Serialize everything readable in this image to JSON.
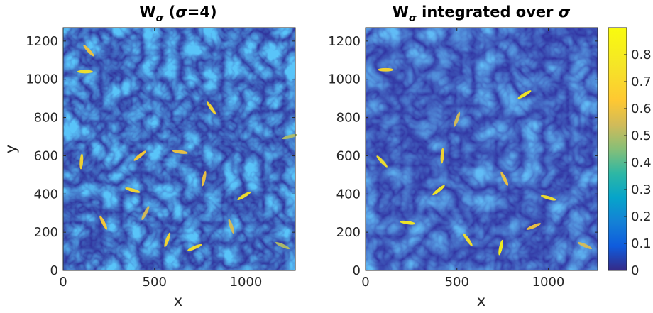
{
  "chart_data": [
    {
      "type": "heatmap",
      "title_main": "W",
      "title_sub": "σ",
      "title_rest_open": " (",
      "title_sigma": "σ",
      "title_rest_close": "=4)",
      "xlabel": "x",
      "ylabel": "y",
      "xlim": [
        0,
        1270
      ],
      "ylim": [
        0,
        1270
      ],
      "xticks": [
        0,
        500,
        1000
      ],
      "yticks": [
        0,
        200,
        400,
        600,
        800,
        1000,
        1200
      ],
      "colormap": "parula",
      "bright_streaks": [
        {
          "x": 120,
          "y": 1040,
          "v": 0.75
        },
        {
          "x": 140,
          "y": 1150,
          "v": 0.6
        },
        {
          "x": 100,
          "y": 570,
          "v": 0.7
        },
        {
          "x": 420,
          "y": 600,
          "v": 0.65
        },
        {
          "x": 640,
          "y": 620,
          "v": 0.6
        },
        {
          "x": 810,
          "y": 850,
          "v": 0.7
        },
        {
          "x": 770,
          "y": 480,
          "v": 0.6
        },
        {
          "x": 990,
          "y": 390,
          "v": 0.75
        },
        {
          "x": 380,
          "y": 420,
          "v": 0.7
        },
        {
          "x": 220,
          "y": 250,
          "v": 0.65
        },
        {
          "x": 570,
          "y": 160,
          "v": 0.7
        },
        {
          "x": 720,
          "y": 120,
          "v": 0.75
        },
        {
          "x": 1200,
          "y": 130,
          "v": 0.5
        },
        {
          "x": 920,
          "y": 230,
          "v": 0.55
        },
        {
          "x": 450,
          "y": 300,
          "v": 0.55
        },
        {
          "x": 1240,
          "y": 700,
          "v": 0.5
        }
      ]
    },
    {
      "type": "heatmap",
      "title_main": "W",
      "title_sub": "σ",
      "title_rest": " integrated over ",
      "title_sigma": "σ",
      "xlabel": "x",
      "ylabel": "",
      "xlim": [
        0,
        1270
      ],
      "ylim": [
        0,
        1270
      ],
      "xticks": [
        0,
        500,
        1000
      ],
      "yticks": [
        0,
        200,
        400,
        600,
        800,
        1000,
        1200
      ],
      "colormap": "parula",
      "colorbar": {
        "range": [
          0,
          0.9
        ],
        "ticks": [
          0,
          0.1,
          0.2,
          0.3,
          0.4,
          0.5,
          0.6,
          0.7,
          0.8
        ],
        "tick_labels": [
          "0",
          "0.1",
          "0.2",
          "0.3",
          "0.4",
          "0.5",
          "0.6",
          "0.7",
          "0.8"
        ]
      },
      "bright_streaks": [
        {
          "x": 110,
          "y": 1050,
          "v": 0.7
        },
        {
          "x": 90,
          "y": 570,
          "v": 0.75
        },
        {
          "x": 420,
          "y": 600,
          "v": 0.7
        },
        {
          "x": 400,
          "y": 420,
          "v": 0.8
        },
        {
          "x": 230,
          "y": 250,
          "v": 0.8
        },
        {
          "x": 560,
          "y": 160,
          "v": 0.75
        },
        {
          "x": 740,
          "y": 120,
          "v": 0.85
        },
        {
          "x": 870,
          "y": 920,
          "v": 0.8
        },
        {
          "x": 1000,
          "y": 380,
          "v": 0.75
        },
        {
          "x": 760,
          "y": 480,
          "v": 0.6
        },
        {
          "x": 500,
          "y": 790,
          "v": 0.55
        },
        {
          "x": 920,
          "y": 230,
          "v": 0.6
        },
        {
          "x": 1200,
          "y": 130,
          "v": 0.55
        }
      ]
    }
  ]
}
